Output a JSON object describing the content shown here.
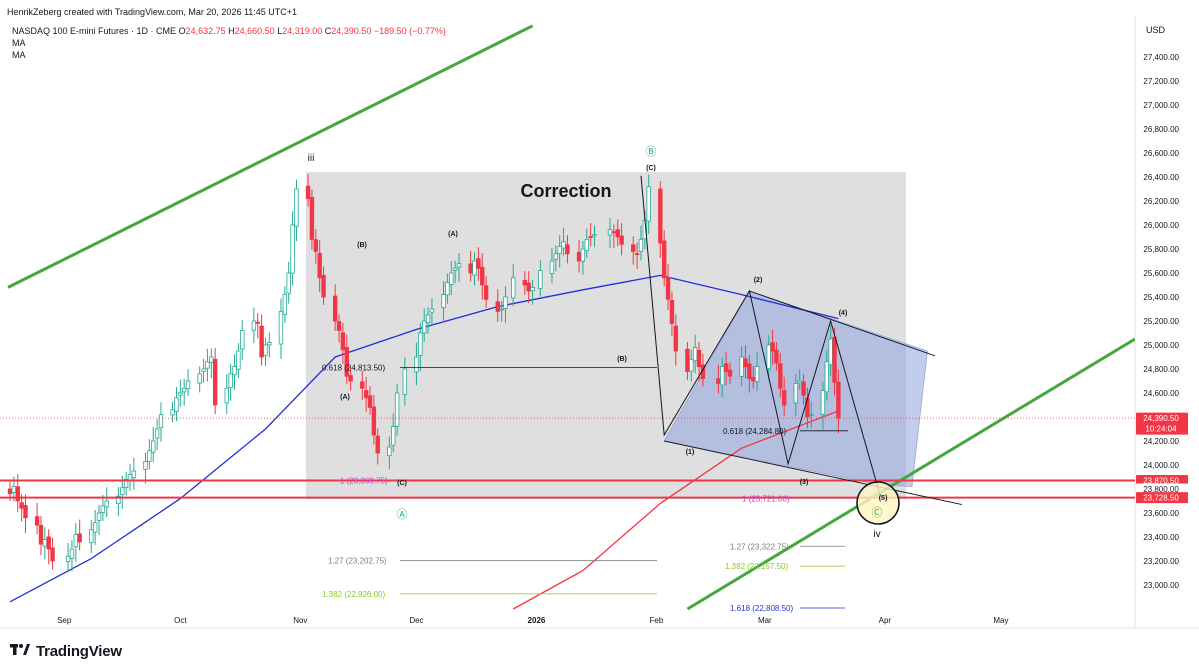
{
  "header": {
    "attribution": "HenrikZeberg created with TradingView.com, Mar 20, 2026 11:45 UTC+1",
    "symbol": "NASDAQ 100 E-mini Futures · 1D · CME",
    "open_label": "O",
    "open": "24,632.75",
    "high_label": "H",
    "high": "24,660.50",
    "low_label": "L",
    "low": "24,319.00",
    "close_label": "C",
    "close": "24,390.50",
    "change": "−189.50 (−0.77%)",
    "ma1": "MA",
    "ma2": "MA"
  },
  "axis": {
    "currency": "USD"
  },
  "footer": {
    "brand": "TradingView"
  },
  "colors": {
    "up": "#22ab94",
    "down": "#f23645",
    "ma_blue": "#2130d6",
    "ma_red": "#f23645",
    "trend_green": "#43a83b",
    "correction_box": "#d9d9d9",
    "wedge_fill": "#8fa3dc",
    "fib_green": "#8ac924"
  },
  "chart_data": {
    "type": "candlestick",
    "title": "NASDAQ 100 E-mini Futures · 1D · CME",
    "x_ticks": [
      "Sep",
      "Oct",
      "Nov",
      "Dec",
      "2026",
      "Feb",
      "Mar",
      "Apr",
      "May"
    ],
    "y_ticks": [
      "27,400.00",
      "27,200.00",
      "27,000.00",
      "26,800.00",
      "26,600.00",
      "26,400.00",
      "26,200.00",
      "26,000.00",
      "25,800.00",
      "25,600.00",
      "25,400.00",
      "25,200.00",
      "25,000.00",
      "24,800.00",
      "24,600.00",
      "24,400.00",
      "24,200.00",
      "24,000.00",
      "23,800.00",
      "23,600.00",
      "23,400.00",
      "23,200.00",
      "23,000.00"
    ],
    "ylim": [
      22800,
      27600
    ],
    "price_labels": [
      {
        "text": "24,390.50",
        "sub": "10:24:04",
        "value": 24390.5
      },
      {
        "text": "23,870.50",
        "value": 23870.5
      },
      {
        "text": "23,800.00",
        "value": 23800
      },
      {
        "text": "23,728.50",
        "value": 23728.5
      }
    ],
    "last_close": 24390.5,
    "x_dates": [
      "2025-08-18",
      "2025-08-19",
      "2025-08-20",
      "2025-08-21",
      "2025-08-22",
      "2025-08-25",
      "2025-08-26",
      "2025-08-27",
      "2025-08-28",
      "2025-08-29",
      "2025-09-02",
      "2025-09-03",
      "2025-09-04",
      "2025-09-05",
      "2025-09-08",
      "2025-09-09",
      "2025-09-10",
      "2025-09-11",
      "2025-09-12",
      "2025-09-15",
      "2025-09-16",
      "2025-09-17",
      "2025-09-18",
      "2025-09-19",
      "2025-09-22",
      "2025-09-23",
      "2025-09-24",
      "2025-09-25",
      "2025-09-26",
      "2025-09-29",
      "2025-09-30",
      "2025-10-01",
      "2025-10-02",
      "2025-10-03",
      "2025-10-06",
      "2025-10-07",
      "2025-10-08",
      "2025-10-09",
      "2025-10-10",
      "2025-10-13",
      "2025-10-14",
      "2025-10-15",
      "2025-10-16",
      "2025-10-17",
      "2025-10-20",
      "2025-10-21",
      "2025-10-22",
      "2025-10-23",
      "2025-10-24",
      "2025-10-27",
      "2025-10-28",
      "2025-10-29",
      "2025-10-30",
      "2025-10-31",
      "2025-11-03",
      "2025-11-04",
      "2025-11-05",
      "2025-11-06",
      "2025-11-07",
      "2025-11-10",
      "2025-11-11",
      "2025-11-12",
      "2025-11-13",
      "2025-11-14",
      "2025-11-17",
      "2025-11-18",
      "2025-11-19",
      "2025-11-20",
      "2025-11-21",
      "2025-11-24",
      "2025-11-25",
      "2025-11-26",
      "2025-11-28",
      "2025-12-01",
      "2025-12-02",
      "2025-12-03",
      "2025-12-04",
      "2025-12-05",
      "2025-12-08",
      "2025-12-09",
      "2025-12-10",
      "2025-12-11",
      "2025-12-12",
      "2025-12-15",
      "2025-12-16",
      "2025-12-17",
      "2025-12-18",
      "2025-12-19",
      "2025-12-22",
      "2025-12-23",
      "2025-12-24",
      "2025-12-26",
      "2025-12-29",
      "2025-12-30",
      "2025-12-31",
      "2026-01-02",
      "2026-01-05",
      "2026-01-06",
      "2026-01-07",
      "2026-01-08",
      "2026-01-09",
      "2026-01-12",
      "2026-01-13",
      "2026-01-14",
      "2026-01-15",
      "2026-01-16",
      "2026-01-20",
      "2026-01-21",
      "2026-01-22",
      "2026-01-23",
      "2026-01-26",
      "2026-01-27",
      "2026-01-28",
      "2026-01-29",
      "2026-01-30",
      "2026-02-02",
      "2026-02-03",
      "2026-02-04",
      "2026-02-05",
      "2026-02-06",
      "2026-02-09",
      "2026-02-10",
      "2026-02-11",
      "2026-02-12",
      "2026-02-13",
      "2026-02-17",
      "2026-02-18",
      "2026-02-19",
      "2026-02-20",
      "2026-02-23",
      "2026-02-24",
      "2026-02-25",
      "2026-02-26",
      "2026-02-27",
      "2026-03-02",
      "2026-03-03",
      "2026-03-04",
      "2026-03-05",
      "2026-03-06",
      "2026-03-09",
      "2026-03-10",
      "2026-03-11",
      "2026-03-12",
      "2026-03-13",
      "2026-03-16",
      "2026-03-17",
      "2026-03-18",
      "2026-03-19",
      "2026-03-20"
    ],
    "close": [
      23760,
      23820,
      23700,
      23640,
      23560,
      23500,
      23340,
      23380,
      23300,
      23200,
      23240,
      23300,
      23420,
      23360,
      23460,
      23520,
      23600,
      23660,
      23700,
      23740,
      23810,
      23880,
      23920,
      23950,
      24030,
      24120,
      24200,
      24300,
      24420,
      24460,
      24560,
      24600,
      24640,
      24700,
      24760,
      24800,
      24860,
      24900,
      24500,
      24640,
      24760,
      24820,
      24950,
      25120,
      25200,
      25180,
      24900,
      25000,
      25020,
      25280,
      25420,
      25600,
      26000,
      26300,
      26220,
      25880,
      25780,
      25560,
      25400,
      25200,
      25120,
      24960,
      24740,
      24700,
      24640,
      24560,
      24480,
      24250,
      24100,
      24150,
      24320,
      24600,
      24800,
      24900,
      25100,
      25200,
      25250,
      25300,
      25420,
      25520,
      25600,
      25640,
      25680,
      25600,
      25700,
      25640,
      25500,
      25380,
      25280,
      25300,
      25400,
      25560,
      25500,
      25450,
      25480,
      25620,
      25700,
      25760,
      25820,
      25860,
      25760,
      25700,
      25800,
      25880,
      25900,
      25920,
      25960,
      25940,
      25900,
      25840,
      25780,
      25760,
      25880,
      26040,
      26320,
      25850,
      25560,
      25380,
      25180,
      24950,
      24780,
      24880,
      24980,
      24820,
      24720,
      24680,
      24820,
      24780,
      24740,
      24900,
      24820,
      24720,
      24700,
      24820,
      25000,
      24950,
      24850,
      24640,
      24500,
      24680,
      24700,
      24580,
      24400,
      24420,
      24620,
      24860,
      25050,
      24690,
      24390.5
    ],
    "ma_blue": {
      "x": [
        "2025-08-18",
        "2025-09-08",
        "2025-10-01",
        "2025-10-23",
        "2025-11-10",
        "2025-12-01",
        "2025-12-22",
        "2026-01-13",
        "2026-02-02",
        "2026-02-23",
        "2026-03-20"
      ],
      "y": [
        22860,
        23220,
        23720,
        24300,
        24900,
        25130,
        25320,
        25460,
        25580,
        25420,
        25220
      ]
    },
    "ma_red": {
      "x": [
        "2025-12-26",
        "2026-01-13",
        "2026-02-02",
        "2026-02-23",
        "2026-03-20"
      ],
      "y": [
        22800,
        23120,
        23680,
        24140,
        24450
      ]
    },
    "fib_levels": [
      {
        "text": "0.618 (24,813.50)",
        "value": 24813.5
      },
      {
        "text": "1 (23,869.75)",
        "value": 23869.75
      },
      {
        "text": "1.27 (23,202.75)",
        "value": 23202.75
      },
      {
        "text": "1.382 (22,926.00)",
        "value": 22926
      },
      {
        "text": "0.618 (24,284.80)",
        "value": 24284.8
      },
      {
        "text": "1 (23,721.00)",
        "value": 23721
      },
      {
        "text": "1.27 (23,322.75)",
        "value": 23322.75
      },
      {
        "text": "1.382 (23,157.50)",
        "value": 23157.5
      },
      {
        "text": "1.618 (22,808.50)",
        "value": 22808.5
      }
    ],
    "annotations": [
      "Correction",
      "iii",
      "iv",
      "(A)",
      "(B)",
      "(C)",
      "(1)",
      "(2)",
      "(3)",
      "(4)",
      "(5)",
      "Ⓐ",
      "Ⓑ",
      "Ⓒ"
    ]
  }
}
